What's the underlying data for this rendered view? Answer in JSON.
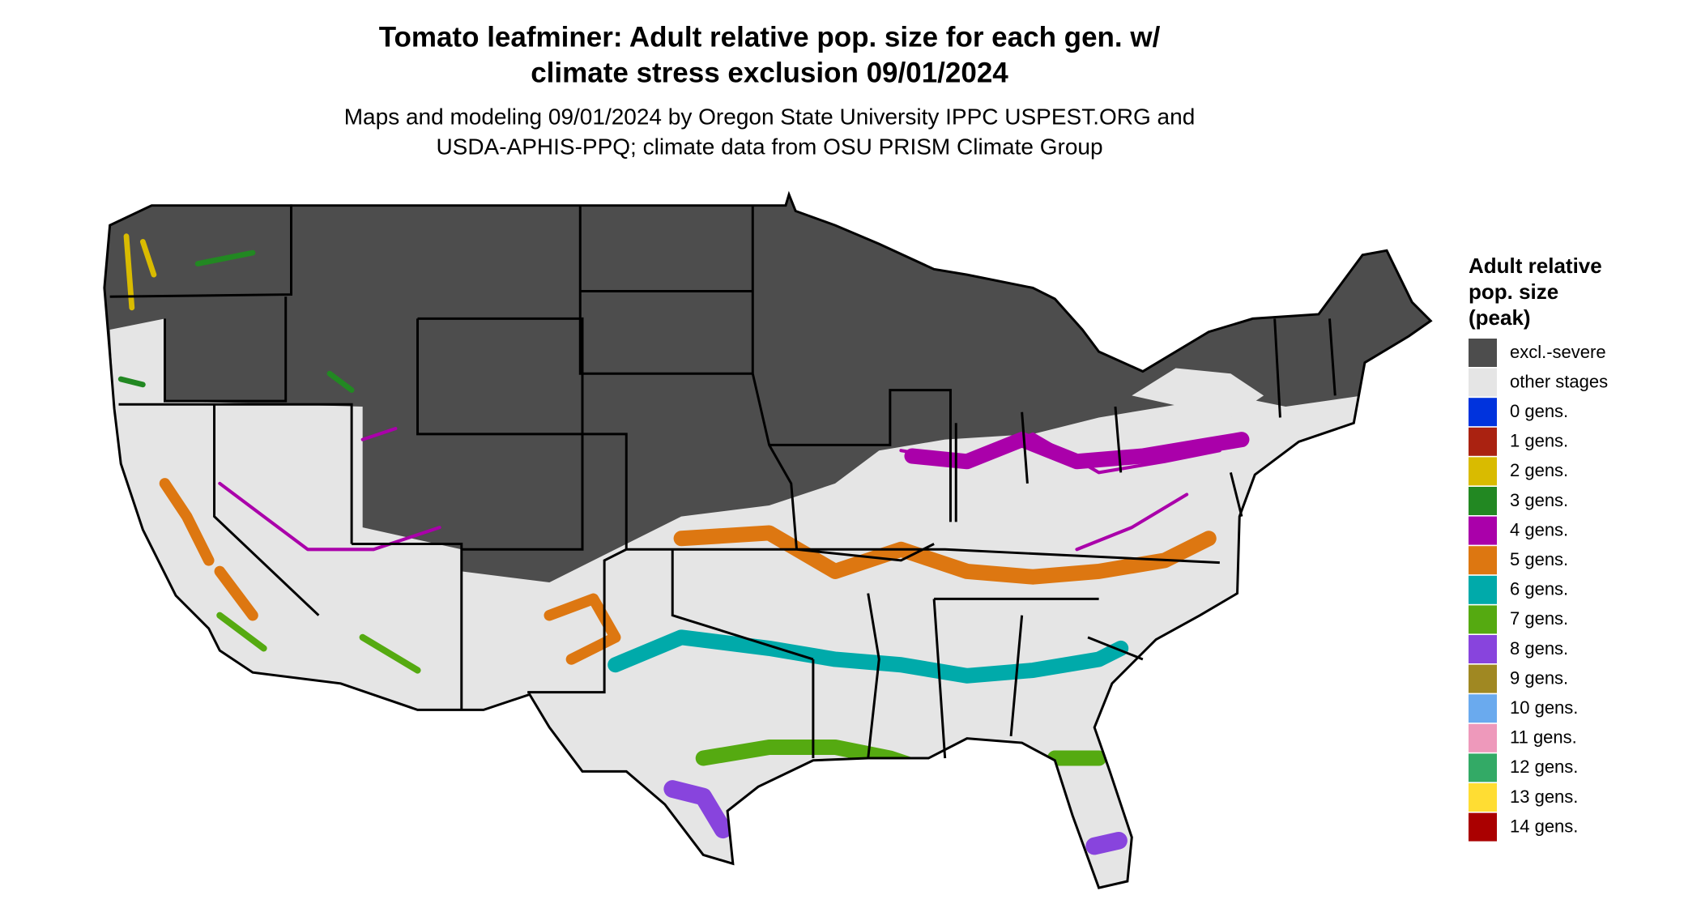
{
  "map": {
    "title": [
      "Tomato leafminer: Adult relative pop. size for each gen. w/",
      "climate stress exclusion 09/01/2024"
    ],
    "subtitle": [
      "Maps and modeling 09/01/2024 by Oregon State University IPPC USPEST.ORG and",
      "USDA-APHIS-PPQ; climate data from OSU PRISM Climate Group"
    ],
    "legend": {
      "title": [
        "Adult relative",
        "pop. size",
        "(peak)"
      ],
      "items": [
        {
          "label": "excl.-severe",
          "color": "#4d4d4d"
        },
        {
          "label": "other stages",
          "color": "#e5e5e5"
        },
        {
          "label": "0 gens.",
          "color": "#0033dd"
        },
        {
          "label": "1 gens.",
          "color": "#aa2211"
        },
        {
          "label": "2 gens.",
          "color": "#d9bb00"
        },
        {
          "label": "3 gens.",
          "color": "#228822"
        },
        {
          "label": "4 gens.",
          "color": "#aa00aa"
        },
        {
          "label": "5 gens.",
          "color": "#dd7711"
        },
        {
          "label": "6 gens.",
          "color": "#00aaaa"
        },
        {
          "label": "7 gens.",
          "color": "#55aa11"
        },
        {
          "label": "8 gens.",
          "color": "#8844dd"
        },
        {
          "label": "9 gens.",
          "color": "#a08822"
        },
        {
          "label": "10 gens.",
          "color": "#6aaaee"
        },
        {
          "label": "11 gens.",
          "color": "#ee99bb"
        },
        {
          "label": "12 gens.",
          "color": "#33aa66"
        },
        {
          "label": "13 gens.",
          "color": "#ffdd33"
        },
        {
          "label": "14 gens.",
          "color": "#aa0000"
        }
      ]
    }
  }
}
